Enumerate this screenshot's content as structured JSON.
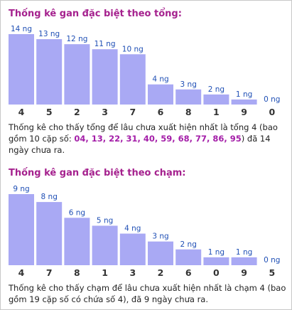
{
  "sections": [
    {
      "title": "Thống kê gan đặc biệt theo tổng:",
      "chart_data": {
        "type": "bar",
        "categories": [
          "4",
          "5",
          "2",
          "3",
          "7",
          "6",
          "8",
          "1",
          "9",
          "0"
        ],
        "values": [
          14,
          13,
          12,
          11,
          10,
          4,
          3,
          2,
          1,
          0
        ],
        "value_labels": [
          "14 ng",
          "13 ng",
          "12 ng",
          "11 ng",
          "10 ng",
          "4 ng",
          "3 ng",
          "2 ng",
          "1 ng",
          "0 ng"
        ],
        "ylim": [
          0,
          14
        ],
        "bar_color": "#a9a9f4",
        "label_color": "#1f4fb5"
      },
      "description": {
        "before": "Thống kê cho thấy tổng để lâu chưa xuất hiện nhất là tổng 4 (bao gồm 10 cặp số: ",
        "highlight": "04, 13, 22, 31, 40, 59, 68, 77, 86, 95",
        "after": ") đã 14 ngày chưa ra."
      }
    },
    {
      "title": "Thống kê gan đặc biệt theo chạm:",
      "chart_data": {
        "type": "bar",
        "categories": [
          "4",
          "7",
          "8",
          "1",
          "3",
          "2",
          "6",
          "0",
          "9",
          "5"
        ],
        "values": [
          9,
          8,
          6,
          5,
          4,
          3,
          2,
          1,
          1,
          0
        ],
        "value_labels": [
          "9 ng",
          "8 ng",
          "6 ng",
          "5 ng",
          "4 ng",
          "3 ng",
          "2 ng",
          "1 ng",
          "1 ng",
          "0 ng"
        ],
        "ylim": [
          0,
          9
        ],
        "bar_color": "#a9a9f4",
        "label_color": "#1f4fb5"
      },
      "description": {
        "before": "Thống kê cho thấy chạm để lâu chưa xuất hiện nhất là chạm 4 (bao gồm 19 cặp số có chứa số 4), đã 9 ngày chưa ra.",
        "highlight": "",
        "after": ""
      }
    }
  ]
}
